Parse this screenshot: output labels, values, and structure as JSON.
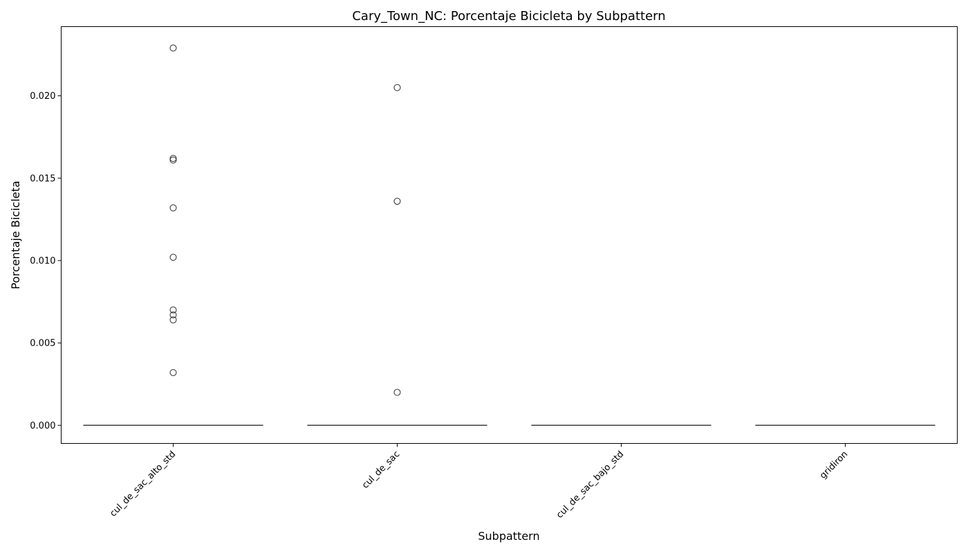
{
  "chart_data": {
    "type": "box",
    "title": "Cary_Town_NC: Porcentaje Bicicleta by Subpattern",
    "xlabel": "Subpattern",
    "ylabel": "Porcentaje Bicicleta",
    "categories": [
      "cul_de_sac_alto_std",
      "cul_de_sac",
      "cul_de_sac_bajo_std",
      "gridiron"
    ],
    "ylim": [
      -0.0011,
      0.0242
    ],
    "yticks": [
      0.0,
      0.005,
      0.01,
      0.015,
      0.02
    ],
    "ytick_labels": [
      "0.000",
      "0.005",
      "0.010",
      "0.015",
      "0.020"
    ],
    "grid": false,
    "boxes": [
      {
        "category": "cul_de_sac_alto_std",
        "min": 0.0,
        "q1": 0.0,
        "median": 0.0,
        "q3": 0.0,
        "max": 0.0,
        "outliers": [
          0.0229,
          0.0162,
          0.0161,
          0.0132,
          0.0102,
          0.007,
          0.0067,
          0.0064,
          0.0032
        ]
      },
      {
        "category": "cul_de_sac",
        "min": 0.0,
        "q1": 0.0,
        "median": 0.0,
        "q3": 0.0,
        "max": 0.0,
        "outliers": [
          0.0205,
          0.0136,
          0.002
        ]
      },
      {
        "category": "cul_de_sac_bajo_std",
        "min": 0.0,
        "q1": 0.0,
        "median": 0.0,
        "q3": 0.0,
        "max": 0.0,
        "outliers": []
      },
      {
        "category": "gridiron",
        "min": 0.0,
        "q1": 0.0,
        "median": 0.0,
        "q3": 0.0,
        "max": 0.0,
        "outliers": []
      }
    ],
    "colors": {
      "box_line": "#3f3f3f",
      "axes": "#000000",
      "text": "#000000",
      "background": "#ffffff"
    }
  }
}
